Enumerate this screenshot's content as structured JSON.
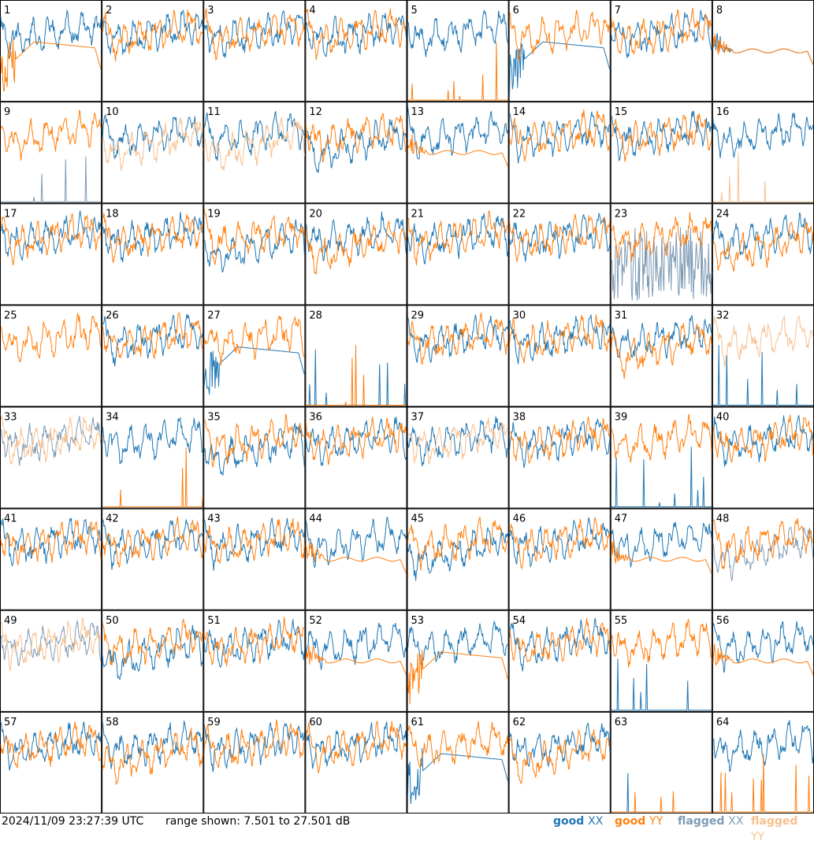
{
  "timestamp": "2024/11/09 23:27:39 UTC",
  "range_text": "range shown: 7.501 to 27.501 dB",
  "legend": {
    "good_xx": {
      "label": "good",
      "pol": "XX",
      "color": "#1f77b4"
    },
    "good_yy": {
      "label": "good",
      "pol": "YY",
      "color": "#ff7f0e"
    },
    "flagged_xx": {
      "label": "flagged",
      "pol": "XX",
      "color": "#7f9bb5"
    },
    "flagged_yy": {
      "label": "flagged",
      "pol": "YY",
      "color": "#f7c08f"
    }
  },
  "chart_data": {
    "type": "line",
    "grid": "8x8",
    "ylim": [
      7.501,
      27.501
    ],
    "panels": [
      {
        "id": "1",
        "xx": "good",
        "yy": "good",
        "xx_shape": "normal",
        "yy_shape": "sag"
      },
      {
        "id": "2",
        "xx": "good",
        "yy": "good",
        "xx_shape": "normal",
        "yy_shape": "normal"
      },
      {
        "id": "3",
        "xx": "good",
        "yy": "good",
        "xx_shape": "normal",
        "yy_shape": "normal"
      },
      {
        "id": "4",
        "xx": "good",
        "yy": "good",
        "xx_shape": "normal",
        "yy_shape": "normal"
      },
      {
        "id": "5",
        "xx": "good",
        "yy": "good",
        "xx_shape": "normal",
        "yy_shape": "spikes"
      },
      {
        "id": "6",
        "xx": "good",
        "yy": "good",
        "xx_shape": "sag",
        "yy_shape": "normal"
      },
      {
        "id": "7",
        "xx": "good",
        "yy": "good",
        "xx_shape": "normal",
        "yy_shape": "normal"
      },
      {
        "id": "8",
        "xx": "good",
        "yy": "good",
        "xx_shape": "flat",
        "yy_shape": "flat"
      },
      {
        "id": "9",
        "xx": "flagged",
        "yy": "good",
        "xx_shape": "spikes",
        "yy_shape": "normal"
      },
      {
        "id": "10",
        "xx": "good",
        "yy": "flagged",
        "xx_shape": "normal",
        "yy_shape": "low"
      },
      {
        "id": "11",
        "xx": "good",
        "yy": "flagged",
        "xx_shape": "normal",
        "yy_shape": "low"
      },
      {
        "id": "12",
        "xx": "good",
        "yy": "good",
        "xx_shape": "low",
        "yy_shape": "normal"
      },
      {
        "id": "13",
        "xx": "good",
        "yy": "good",
        "xx_shape": "normal",
        "yy_shape": "flat"
      },
      {
        "id": "14",
        "xx": "good",
        "yy": "good",
        "xx_shape": "normal",
        "yy_shape": "normal"
      },
      {
        "id": "15",
        "xx": "good",
        "yy": "good",
        "xx_shape": "normal",
        "yy_shape": "normal"
      },
      {
        "id": "16",
        "xx": "good",
        "yy": "flagged",
        "xx_shape": "normal",
        "yy_shape": "spikes"
      },
      {
        "id": "17",
        "xx": "good",
        "yy": "good",
        "xx_shape": "normal",
        "yy_shape": "normal"
      },
      {
        "id": "18",
        "xx": "good",
        "yy": "good",
        "xx_shape": "normal",
        "yy_shape": "normal"
      },
      {
        "id": "19",
        "xx": "good",
        "yy": "good",
        "xx_shape": "low",
        "yy_shape": "normal"
      },
      {
        "id": "20",
        "xx": "good",
        "yy": "good",
        "xx_shape": "normal",
        "yy_shape": "low"
      },
      {
        "id": "21",
        "xx": "good",
        "yy": "good",
        "xx_shape": "normal",
        "yy_shape": "normal"
      },
      {
        "id": "22",
        "xx": "good",
        "yy": "good",
        "xx_shape": "normal",
        "yy_shape": "normal"
      },
      {
        "id": "23",
        "xx": "flagged",
        "yy": "good",
        "xx_shape": "noise",
        "yy_shape": "normal"
      },
      {
        "id": "24",
        "xx": "good",
        "yy": "good",
        "xx_shape": "normal",
        "yy_shape": "low"
      },
      {
        "id": "25",
        "xx": "good",
        "yy": "good",
        "xx_shape": "none",
        "yy_shape": "normal"
      },
      {
        "id": "26",
        "xx": "good",
        "yy": "good",
        "xx_shape": "normal",
        "yy_shape": "normal"
      },
      {
        "id": "27",
        "xx": "good",
        "yy": "good",
        "xx_shape": "sag",
        "yy_shape": "normal"
      },
      {
        "id": "28",
        "xx": "good",
        "yy": "good",
        "xx_shape": "spikes",
        "yy_shape": "spikes"
      },
      {
        "id": "29",
        "xx": "good",
        "yy": "good",
        "xx_shape": "normal",
        "yy_shape": "normal"
      },
      {
        "id": "30",
        "xx": "good",
        "yy": "good",
        "xx_shape": "normal",
        "yy_shape": "normal"
      },
      {
        "id": "31",
        "xx": "good",
        "yy": "good",
        "xx_shape": "normal",
        "yy_shape": "low"
      },
      {
        "id": "32",
        "xx": "good",
        "yy": "flagged",
        "xx_shape": "spikes",
        "yy_shape": "normal"
      },
      {
        "id": "33",
        "xx": "flagged",
        "yy": "flagged",
        "xx_shape": "normal",
        "yy_shape": "normal"
      },
      {
        "id": "34",
        "xx": "good",
        "yy": "good",
        "xx_shape": "normal",
        "yy_shape": "spikes"
      },
      {
        "id": "35",
        "xx": "good",
        "yy": "good",
        "xx_shape": "low",
        "yy_shape": "normal"
      },
      {
        "id": "36",
        "xx": "good",
        "yy": "good",
        "xx_shape": "normal",
        "yy_shape": "normal"
      },
      {
        "id": "37",
        "xx": "good",
        "yy": "flagged",
        "xx_shape": "normal",
        "yy_shape": "normal"
      },
      {
        "id": "38",
        "xx": "good",
        "yy": "good",
        "xx_shape": "normal",
        "yy_shape": "normal"
      },
      {
        "id": "39",
        "xx": "good",
        "yy": "good",
        "xx_shape": "spikes",
        "yy_shape": "normal"
      },
      {
        "id": "40",
        "xx": "good",
        "yy": "good",
        "xx_shape": "normal",
        "yy_shape": "normal"
      },
      {
        "id": "41",
        "xx": "good",
        "yy": "good",
        "xx_shape": "normal",
        "yy_shape": "normal"
      },
      {
        "id": "42",
        "xx": "good",
        "yy": "good",
        "xx_shape": "normal",
        "yy_shape": "normal"
      },
      {
        "id": "43",
        "xx": "good",
        "yy": "good",
        "xx_shape": "normal",
        "yy_shape": "normal"
      },
      {
        "id": "44",
        "xx": "good",
        "yy": "good",
        "xx_shape": "normal",
        "yy_shape": "flat"
      },
      {
        "id": "45",
        "xx": "good",
        "yy": "good",
        "xx_shape": "low",
        "yy_shape": "normal"
      },
      {
        "id": "46",
        "xx": "good",
        "yy": "good",
        "xx_shape": "normal",
        "yy_shape": "normal"
      },
      {
        "id": "47",
        "xx": "good",
        "yy": "good",
        "xx_shape": "normal",
        "yy_shape": "flat"
      },
      {
        "id": "48",
        "xx": "flagged",
        "yy": "good",
        "xx_shape": "low",
        "yy_shape": "normal"
      },
      {
        "id": "49",
        "xx": "flagged",
        "yy": "flagged",
        "xx_shape": "normal",
        "yy_shape": "normal"
      },
      {
        "id": "50",
        "xx": "good",
        "yy": "good",
        "xx_shape": "low",
        "yy_shape": "normal"
      },
      {
        "id": "51",
        "xx": "good",
        "yy": "good",
        "xx_shape": "normal",
        "yy_shape": "normal"
      },
      {
        "id": "52",
        "xx": "good",
        "yy": "good",
        "xx_shape": "normal",
        "yy_shape": "flat"
      },
      {
        "id": "53",
        "xx": "good",
        "yy": "good",
        "xx_shape": "normal",
        "yy_shape": "sag"
      },
      {
        "id": "54",
        "xx": "good",
        "yy": "good",
        "xx_shape": "normal",
        "yy_shape": "normal"
      },
      {
        "id": "55",
        "xx": "good",
        "yy": "good",
        "xx_shape": "spikes",
        "yy_shape": "normal"
      },
      {
        "id": "56",
        "xx": "good",
        "yy": "good",
        "xx_shape": "normal",
        "yy_shape": "flat"
      },
      {
        "id": "57",
        "xx": "good",
        "yy": "good",
        "xx_shape": "normal",
        "yy_shape": "normal"
      },
      {
        "id": "58",
        "xx": "good",
        "yy": "good",
        "xx_shape": "normal",
        "yy_shape": "low"
      },
      {
        "id": "59",
        "xx": "good",
        "yy": "good",
        "xx_shape": "normal",
        "yy_shape": "normal"
      },
      {
        "id": "60",
        "xx": "good",
        "yy": "good",
        "xx_shape": "normal",
        "yy_shape": "normal"
      },
      {
        "id": "61",
        "xx": "good",
        "yy": "good",
        "xx_shape": "sag",
        "yy_shape": "normal"
      },
      {
        "id": "62",
        "xx": "good",
        "yy": "good",
        "xx_shape": "normal",
        "yy_shape": "low"
      },
      {
        "id": "63",
        "xx": "good",
        "yy": "good",
        "xx_shape": "spikes",
        "yy_shape": "spikes"
      },
      {
        "id": "64",
        "xx": "good",
        "yy": "good",
        "xx_shape": "normal",
        "yy_shape": "spikes"
      }
    ]
  }
}
